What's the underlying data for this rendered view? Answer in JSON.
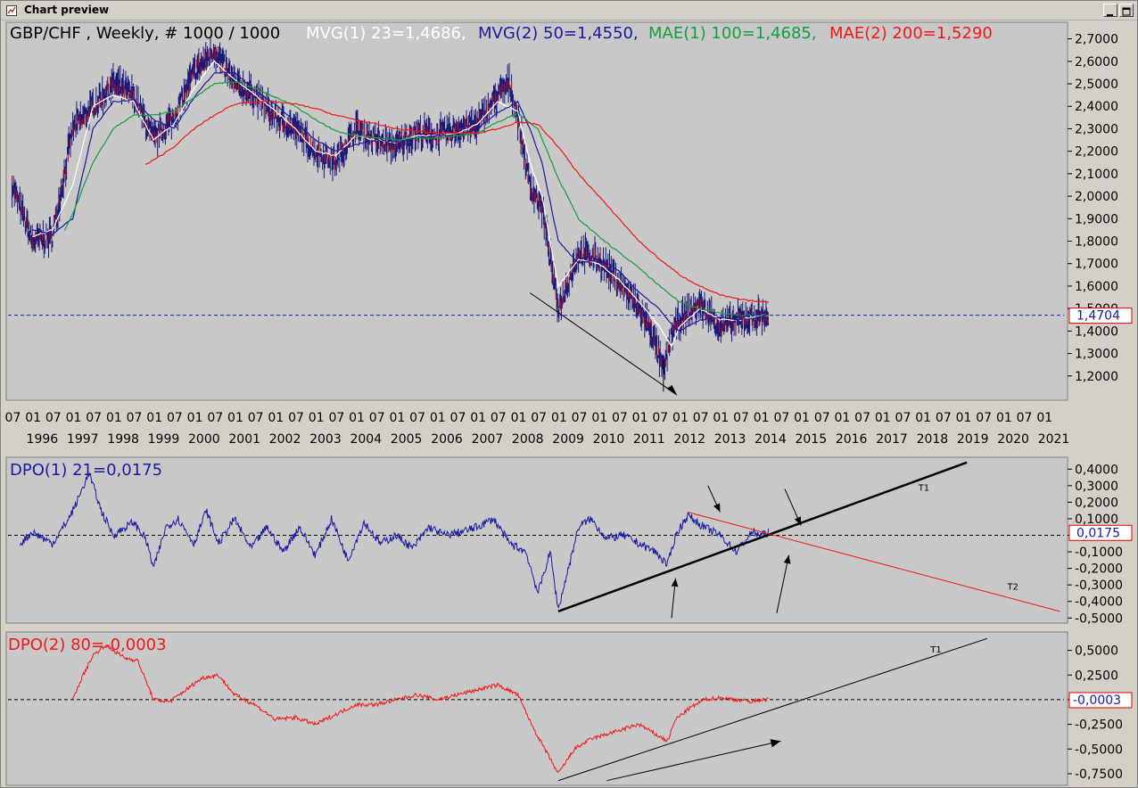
{
  "window": {
    "title": "Chart preview",
    "controls": [
      "minimize-icon",
      "maximize-icon"
    ]
  },
  "colors": {
    "background": "#c8c8c8",
    "price_bar": "#1a1a7a",
    "mvg1": "#ffffff",
    "mvg2": "#1a1aa0",
    "mae1": "#12a040",
    "mae2": "#f21818",
    "dpo1": "#1a1aa0",
    "dpo2": "#f21818",
    "trend": "#000000",
    "current_line": "#2020d0"
  },
  "main_panel": {
    "header": {
      "symbol": "GBP/CHF , Weekly, # 1000 / 1000",
      "mvg1": "MVG(1) 23=1,4686,",
      "mvg2": "MVG(2) 50=1,4550,",
      "mae1": "MAE(1) 100=1,4685,",
      "mae2": "MAE(2) 200=1,5290"
    },
    "current_value_label": "1,4704",
    "y_ticks": [
      "2,7000",
      "2,6000",
      "2,5000",
      "2,4000",
      "2,3000",
      "2,2000",
      "2,1000",
      "2,0000",
      "1,9000",
      "1,8000",
      "1,7000",
      "1,6000",
      "1,5000",
      "1,4000",
      "1,3000",
      "1,2000"
    ],
    "x_month_labels": [
      "07",
      "01",
      "07",
      "01",
      "07",
      "01",
      "07",
      "01",
      "07",
      "01",
      "07",
      "01",
      "07",
      "01",
      "07",
      "01",
      "07",
      "01",
      "07",
      "01",
      "07",
      "01",
      "07",
      "01",
      "07",
      "01",
      "07",
      "01",
      "07",
      "01",
      "07",
      "01",
      "07",
      "01",
      "07",
      "01",
      "07",
      "01",
      "07",
      "01",
      "07",
      "01",
      "07",
      "01",
      "07",
      "01",
      "07",
      "01",
      "07",
      "01",
      "07",
      "01",
      "07",
      "01",
      "07",
      "01"
    ],
    "x_year_labels": [
      "1996",
      "1997",
      "1998",
      "1999",
      "2000",
      "2001",
      "2002",
      "2003",
      "2004",
      "2005",
      "2006",
      "2007",
      "2008",
      "2009",
      "2010",
      "2011",
      "2012",
      "2013",
      "2014",
      "2015",
      "2016",
      "2017",
      "2018",
      "2019",
      "2020",
      "2021"
    ]
  },
  "dpo1_panel": {
    "title": "DPO(1) 21=0,0175",
    "current_value_label": "0,0175",
    "y_ticks": [
      "0,4000",
      "0,3000",
      "0,2000",
      "0,1000",
      "0,0000",
      "-0,1000",
      "-0,2000",
      "-0,3000",
      "-0,4000",
      "-0,5000"
    ],
    "trendline_labels": [
      "T1",
      "T2"
    ]
  },
  "dpo2_panel": {
    "title": "DPO(2) 80=-0,0003",
    "current_value_label": "-0,0003",
    "y_ticks": [
      "0,5000",
      "0,2500",
      "0,0000",
      "-0,2500",
      "-0,5000",
      "-0,7500"
    ],
    "trendline_labels": [
      "T1"
    ]
  },
  "chart_data": {
    "type": "line",
    "title": "GBP/CHF , Weekly, # 1000 / 1000",
    "panels": [
      {
        "name": "price",
        "ylim": [
          1.1,
          2.75
        ],
        "grid": false,
        "series": [
          {
            "name": "GBP/CHF",
            "kind": "bar",
            "x": [
              1995.5,
              1996.0,
              1996.5,
              1997.0,
              1997.5,
              1998.0,
              1998.5,
              1999.0,
              1999.5,
              2000.0,
              2000.5,
              2001.0,
              2001.5,
              2002.0,
              2002.5,
              2003.0,
              2003.5,
              2004.0,
              2004.5,
              2005.0,
              2005.5,
              2006.0,
              2006.5,
              2007.0,
              2007.5,
              2007.8,
              2008.0,
              2008.3,
              2008.6,
              2009.0,
              2009.5,
              2010.0,
              2010.5,
              2011.0,
              2011.3,
              2011.6,
              2011.8,
              2012.0,
              2012.5,
              2013.0,
              2013.5,
              2014.0,
              2014.2
            ],
            "y": [
              2.05,
              1.8,
              1.82,
              2.3,
              2.4,
              2.5,
              2.45,
              2.25,
              2.35,
              2.55,
              2.65,
              2.5,
              2.45,
              2.35,
              2.3,
              2.2,
              2.15,
              2.3,
              2.25,
              2.22,
              2.28,
              2.27,
              2.3,
              2.32,
              2.45,
              2.5,
              2.35,
              2.05,
              1.95,
              1.5,
              1.75,
              1.72,
              1.62,
              1.5,
              1.4,
              1.22,
              1.38,
              1.45,
              1.52,
              1.42,
              1.45,
              1.47,
              1.47
            ]
          },
          {
            "name": "MVG(1) 23",
            "x": [
              1996.0,
              1996.5,
              1997.0,
              1997.5,
              1998.0,
              1998.5,
              1999.0,
              1999.5,
              2000.0,
              2000.5,
              2001.0,
              2001.5,
              2002.0,
              2002.5,
              2003.0,
              2003.5,
              2004.0,
              2004.5,
              2005.0,
              2005.5,
              2006.0,
              2006.5,
              2007.0,
              2007.5,
              2008.0,
              2008.3,
              2008.6,
              2009.0,
              2009.5,
              2010.0,
              2010.5,
              2011.0,
              2011.5,
              2011.8,
              2012.0,
              2012.5,
              2013.0,
              2013.5,
              2014.0,
              2014.2
            ],
            "y": [
              1.82,
              1.85,
              2.05,
              2.4,
              2.45,
              2.42,
              2.25,
              2.32,
              2.48,
              2.6,
              2.52,
              2.45,
              2.38,
              2.3,
              2.2,
              2.18,
              2.27,
              2.25,
              2.24,
              2.27,
              2.27,
              2.28,
              2.32,
              2.42,
              2.38,
              2.15,
              2.0,
              1.6,
              1.72,
              1.7,
              1.63,
              1.53,
              1.42,
              1.33,
              1.42,
              1.5,
              1.45,
              1.45,
              1.47,
              1.4686
            ]
          },
          {
            "name": "MVG(2) 50",
            "x": [
              1996.0,
              1996.5,
              1997.0,
              1997.5,
              1998.0,
              1998.5,
              1999.0,
              1999.5,
              2000.0,
              2000.5,
              2001.0,
              2001.5,
              2002.0,
              2002.5,
              2003.0,
              2003.5,
              2004.0,
              2004.5,
              2005.0,
              2005.5,
              2006.0,
              2006.5,
              2007.0,
              2007.5,
              2008.0,
              2008.3,
              2008.6,
              2009.0,
              2009.5,
              2010.0,
              2010.5,
              2011.0,
              2011.5,
              2011.8,
              2012.0,
              2012.5,
              2013.0,
              2013.5,
              2014.0,
              2014.2
            ],
            "y": [
              1.85,
              1.83,
              1.9,
              2.3,
              2.42,
              2.43,
              2.34,
              2.3,
              2.44,
              2.55,
              2.55,
              2.47,
              2.41,
              2.33,
              2.25,
              2.2,
              2.23,
              2.25,
              2.24,
              2.26,
              2.27,
              2.27,
              2.3,
              2.37,
              2.42,
              2.3,
              2.15,
              1.8,
              1.7,
              1.72,
              1.67,
              1.57,
              1.5,
              1.43,
              1.4,
              1.45,
              1.46,
              1.45,
              1.46,
              1.455
            ]
          },
          {
            "name": "MAE(1) 100",
            "x": [
              1996.8,
              1997.0,
              1997.5,
              1998.0,
              1998.5,
              1999.0,
              1999.5,
              2000.0,
              2000.5,
              2001.0,
              2001.5,
              2002.0,
              2002.5,
              2003.0,
              2003.5,
              2004.0,
              2004.5,
              2005.0,
              2005.5,
              2006.0,
              2006.5,
              2007.0,
              2007.5,
              2008.0,
              2008.5,
              2009.0,
              2009.5,
              2010.0,
              2010.5,
              2011.0,
              2011.5,
              2012.0,
              2012.5,
              2013.0,
              2013.5,
              2014.0,
              2014.2
            ],
            "y": [
              1.85,
              1.92,
              2.15,
              2.3,
              2.36,
              2.36,
              2.38,
              2.44,
              2.5,
              2.51,
              2.48,
              2.44,
              2.4,
              2.34,
              2.29,
              2.27,
              2.26,
              2.25,
              2.26,
              2.26,
              2.27,
              2.28,
              2.33,
              2.37,
              2.3,
              2.08,
              1.9,
              1.82,
              1.75,
              1.68,
              1.6,
              1.53,
              1.5,
              1.48,
              1.47,
              1.47,
              1.4685
            ]
          },
          {
            "name": "MAE(2) 200",
            "x": [
              1998.8,
              1999.0,
              1999.5,
              2000.0,
              2000.5,
              2001.0,
              2001.5,
              2002.0,
              2002.5,
              2003.0,
              2003.5,
              2004.0,
              2004.5,
              2005.0,
              2005.5,
              2006.0,
              2006.5,
              2007.0,
              2007.5,
              2008.0,
              2008.5,
              2009.0,
              2009.5,
              2010.0,
              2010.5,
              2011.0,
              2011.5,
              2012.0,
              2012.5,
              2013.0,
              2013.5,
              2014.0,
              2014.2
            ],
            "y": [
              2.14,
              2.16,
              2.22,
              2.3,
              2.36,
              2.41,
              2.42,
              2.42,
              2.41,
              2.39,
              2.36,
              2.34,
              2.32,
              2.3,
              2.29,
              2.28,
              2.28,
              2.28,
              2.3,
              2.33,
              2.32,
              2.22,
              2.1,
              2.0,
              1.9,
              1.8,
              1.72,
              1.65,
              1.6,
              1.56,
              1.54,
              1.53,
              1.529
            ]
          }
        ]
      },
      {
        "name": "DPO(1) 21",
        "ylim": [
          -0.52,
          0.45
        ],
        "series": [
          {
            "name": "DPO(1) 21",
            "x": [
              1995.7,
              1996.0,
              1996.5,
              1996.9,
              1997.1,
              1997.4,
              1997.7,
              1998.0,
              1998.5,
              1998.8,
              1999.0,
              1999.3,
              1999.6,
              2000.0,
              2000.3,
              2000.6,
              2001.0,
              2001.4,
              2001.8,
              2002.2,
              2002.6,
              2003.0,
              2003.4,
              2003.8,
              2004.2,
              2004.6,
              2005.0,
              2005.4,
              2005.8,
              2006.2,
              2006.6,
              2007.0,
              2007.4,
              2007.8,
              2008.2,
              2008.5,
              2008.8,
              2009.0,
              2009.2,
              2009.5,
              2009.8,
              2010.2,
              2010.6,
              2011.0,
              2011.4,
              2011.7,
              2011.9,
              2012.2,
              2012.6,
              2013.0,
              2013.4,
              2013.8,
              2014.0,
              2014.2
            ],
            "y": [
              -0.05,
              0.02,
              -0.05,
              0.1,
              0.2,
              0.38,
              0.15,
              0.0,
              0.08,
              -0.02,
              -0.2,
              0.05,
              0.1,
              -0.05,
              0.15,
              -0.05,
              0.1,
              -0.08,
              0.05,
              -0.1,
              0.05,
              -0.12,
              0.1,
              -0.15,
              0.08,
              -0.05,
              0.0,
              -0.08,
              0.05,
              0.0,
              0.02,
              0.05,
              0.1,
              -0.05,
              -0.1,
              -0.35,
              -0.1,
              -0.45,
              -0.25,
              0.05,
              0.1,
              -0.02,
              0.0,
              -0.05,
              -0.1,
              -0.18,
              0.0,
              0.12,
              0.05,
              0.0,
              -0.1,
              0.02,
              0.0,
              0.0175
            ]
          }
        ]
      },
      {
        "name": "DPO(2) 80",
        "ylim": [
          -0.85,
          0.65
        ],
        "series": [
          {
            "name": "DPO(2) 80",
            "x": [
              1997.0,
              1997.2,
              1997.5,
              1997.8,
              1998.0,
              1998.3,
              1998.6,
              1999.0,
              1999.4,
              1999.8,
              2000.2,
              2000.6,
              2001.0,
              2001.5,
              2002.0,
              2002.5,
              2003.0,
              2003.5,
              2004.0,
              2004.5,
              2005.0,
              2005.5,
              2006.0,
              2006.5,
              2007.0,
              2007.5,
              2008.0,
              2008.4,
              2008.8,
              2009.0,
              2009.4,
              2009.8,
              2010.2,
              2010.6,
              2011.0,
              2011.4,
              2011.7,
              2011.9,
              2012.2,
              2012.6,
              2013.0,
              2013.4,
              2013.8,
              2014.0,
              2014.2
            ],
            "y": [
              0.0,
              0.2,
              0.45,
              0.55,
              0.5,
              0.42,
              0.4,
              0.0,
              -0.02,
              0.1,
              0.22,
              0.25,
              0.05,
              -0.05,
              -0.2,
              -0.18,
              -0.25,
              -0.15,
              -0.05,
              -0.05,
              0.0,
              0.05,
              0.0,
              0.05,
              0.1,
              0.15,
              0.05,
              -0.3,
              -0.6,
              -0.75,
              -0.5,
              -0.4,
              -0.35,
              -0.3,
              -0.25,
              -0.35,
              -0.42,
              -0.2,
              -0.1,
              0.0,
              0.02,
              0.0,
              -0.02,
              0.0,
              -0.0003
            ]
          }
        ]
      }
    ]
  }
}
